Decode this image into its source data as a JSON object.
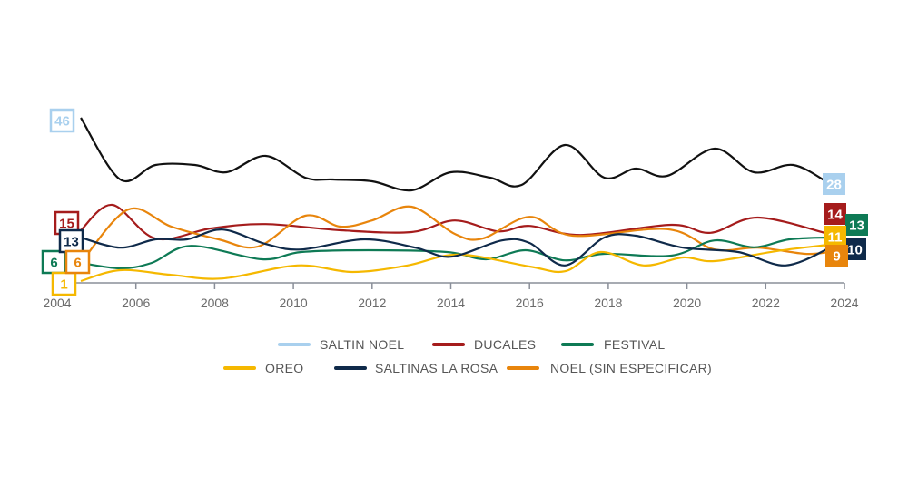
{
  "chart_data": {
    "type": "line",
    "title": "",
    "xlabel": "",
    "ylabel": "",
    "xlim": [
      2004,
      2024
    ],
    "ylim": [
      0,
      46
    ],
    "x_ticks": [
      "2004",
      "2006",
      "2008",
      "2010",
      "2012",
      "2014",
      "2016",
      "2018",
      "2020",
      "2022",
      "2024"
    ],
    "grid": false,
    "legend_position": "bottom",
    "series": [
      {
        "name": "SALTIN NOEL",
        "color": "#a9d0ee",
        "line_color": "#111111",
        "start_label": "46",
        "end_label": "28",
        "x": [
          2004.6,
          2005.6,
          2006.5,
          2007.5,
          2008.3,
          2009.3,
          2010.3,
          2011.0,
          2012.0,
          2013.0,
          2014.0,
          2015.0,
          2015.8,
          2016.9,
          2017.9,
          2018.7,
          2019.5,
          2020.7,
          2021.7,
          2022.7,
          2023.6
        ],
        "y": [
          46,
          29,
          33,
          33,
          31,
          35.5,
          29.5,
          29,
          28.5,
          26,
          31,
          29.5,
          27.5,
          38.5,
          29.5,
          32,
          30,
          37.5,
          31,
          33,
          28
        ]
      },
      {
        "name": "DUCALES",
        "color": "#a51c1c",
        "line_color": "#a51c1c",
        "start_label": "15",
        "end_label": "14",
        "x": [
          2004.6,
          2005.4,
          2006.5,
          2007.9,
          2009.3,
          2011.2,
          2013.0,
          2014.1,
          2015.2,
          2016.0,
          2017.3,
          2019.6,
          2020.6,
          2021.8,
          2023.6
        ],
        "y": [
          15,
          22,
          12.7,
          15.5,
          16.7,
          15,
          14.5,
          17.7,
          14.7,
          16.2,
          13.7,
          16.5,
          14.3,
          18.5,
          14
        ]
      },
      {
        "name": "FESTIVAL",
        "color": "#0e7a55",
        "line_color": "#0e7a55",
        "start_label": "6",
        "end_label": "13",
        "x": [
          2004.6,
          2005.6,
          2006.4,
          2007.4,
          2009.2,
          2010.2,
          2011.9,
          2013.9,
          2014.9,
          2015.9,
          2016.9,
          2017.9,
          2019.6,
          2020.7,
          2021.7,
          2022.6,
          2023.6
        ],
        "y": [
          6,
          4.5,
          6,
          10.7,
          7,
          9,
          9.5,
          9,
          7,
          9.5,
          6.7,
          8.5,
          8,
          12.2,
          10.3,
          12.5,
          13
        ]
      },
      {
        "name": "OREO",
        "color": "#f5b800",
        "line_color": "#f5b800",
        "start_label": "1",
        "end_label": "11",
        "x": [
          2004.6,
          2005.6,
          2006.9,
          2008.2,
          2010.1,
          2011.5,
          2012.9,
          2014.2,
          2016.0,
          2016.9,
          2017.8,
          2018.9,
          2019.9,
          2020.7,
          2022.3,
          2023.6
        ],
        "y": [
          1,
          4,
          2.7,
          1.7,
          5.3,
          3.5,
          5.3,
          8.3,
          5,
          3.7,
          9,
          5.3,
          7.5,
          6.5,
          9.3,
          11
        ]
      },
      {
        "name": "SALTINAS LA ROSA",
        "color": "#0f2a4a",
        "line_color": "#0f2a4a",
        "start_label": "13",
        "end_label": "10",
        "x": [
          2004.6,
          2005.6,
          2006.5,
          2007.3,
          2008.2,
          2009.3,
          2010.2,
          2011.8,
          2013.1,
          2014.0,
          2015.3,
          2016.0,
          2016.9,
          2017.9,
          2018.7,
          2019.9,
          2021.3,
          2022.5,
          2023.6
        ],
        "y": [
          13,
          10.2,
          12.5,
          12.5,
          15.2,
          11.2,
          9.7,
          12.5,
          10.2,
          7.7,
          12.2,
          11.5,
          5.3,
          13,
          13.5,
          10.2,
          9,
          5.3,
          10
        ]
      },
      {
        "name": "NOEL (SIN ESPECIFICAR)",
        "color": "#e8850c",
        "line_color": "#e8850c",
        "start_label": "6",
        "end_label": "9",
        "x": [
          2004.6,
          2005.8,
          2006.9,
          2008.1,
          2009.1,
          2010.3,
          2011.2,
          2012.0,
          2013.0,
          2014.1,
          2014.8,
          2016.0,
          2017.1,
          2019.5,
          2020.7,
          2021.8,
          2023.0,
          2023.6
        ],
        "y": [
          6,
          20.7,
          16,
          12.5,
          10.5,
          19,
          16,
          17.7,
          21.5,
          14,
          12.7,
          18.7,
          13.5,
          15.3,
          9.7,
          10.2,
          8.5,
          9
        ]
      }
    ]
  }
}
